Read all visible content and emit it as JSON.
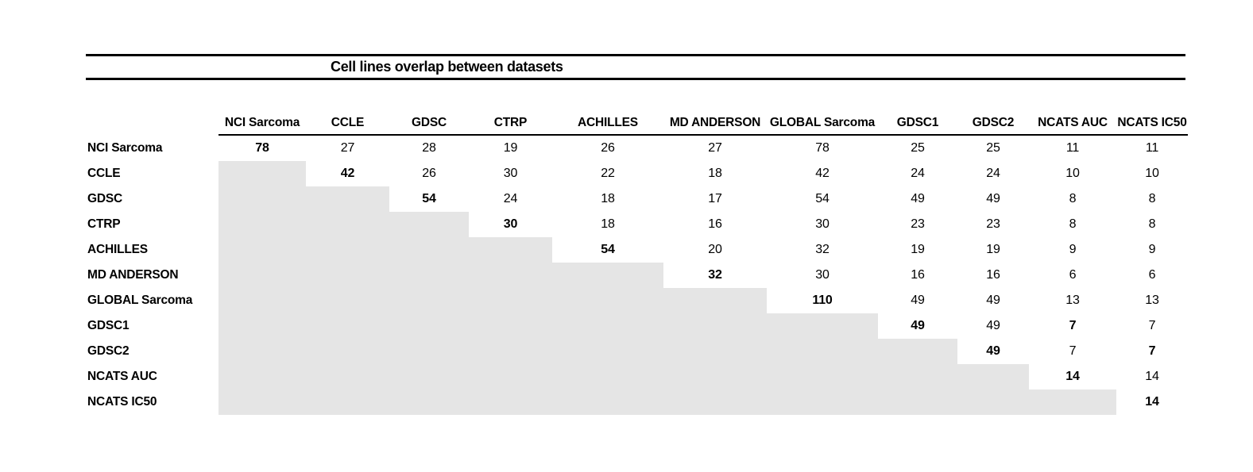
{
  "chart_data": {
    "type": "table",
    "title": "Cell lines overlap between datasets",
    "columns": [
      "NCI Sarcoma",
      "CCLE",
      "GDSC",
      "CTRP",
      "ACHILLES",
      "MD ANDERSON",
      "GLOBAL Sarcoma",
      "GDSC1",
      "GDSC2",
      "NCATS AUC",
      "NCATS IC50"
    ],
    "rows": [
      "NCI Sarcoma",
      "CCLE",
      "GDSC",
      "CTRP",
      "ACHILLES",
      "MD ANDERSON",
      "GLOBAL Sarcoma",
      "GDSC1",
      "GDSC2",
      "NCATS AUC",
      "NCATS IC50"
    ],
    "matrix": [
      [
        78,
        27,
        28,
        19,
        26,
        27,
        78,
        25,
        25,
        11,
        11
      ],
      [
        null,
        42,
        26,
        30,
        22,
        18,
        42,
        24,
        24,
        10,
        10
      ],
      [
        null,
        null,
        54,
        24,
        18,
        17,
        54,
        49,
        49,
        8,
        8
      ],
      [
        null,
        null,
        null,
        30,
        18,
        16,
        30,
        23,
        23,
        8,
        8
      ],
      [
        null,
        null,
        null,
        null,
        54,
        20,
        32,
        19,
        19,
        9,
        9
      ],
      [
        null,
        null,
        null,
        null,
        null,
        32,
        30,
        16,
        16,
        6,
        6
      ],
      [
        null,
        null,
        null,
        null,
        null,
        null,
        110,
        49,
        49,
        13,
        13
      ],
      [
        null,
        null,
        null,
        null,
        null,
        null,
        null,
        49,
        49,
        7,
        7
      ],
      [
        null,
        null,
        null,
        null,
        null,
        null,
        null,
        null,
        49,
        7,
        7
      ],
      [
        null,
        null,
        null,
        null,
        null,
        null,
        null,
        null,
        null,
        14,
        14
      ],
      [
        null,
        null,
        null,
        null,
        null,
        null,
        null,
        null,
        null,
        null,
        14
      ]
    ],
    "bold_cells": [
      [
        0,
        0
      ],
      [
        1,
        1
      ],
      [
        2,
        2
      ],
      [
        3,
        3
      ],
      [
        4,
        4
      ],
      [
        5,
        5
      ],
      [
        6,
        6
      ],
      [
        7,
        7
      ],
      [
        8,
        8
      ],
      [
        9,
        9
      ],
      [
        10,
        10
      ],
      [
        7,
        9
      ],
      [
        8,
        10
      ]
    ],
    "grid": false,
    "legend_position": "none",
    "shaded_lower_triangle": true
  },
  "colors": {
    "shaded_cell": "#e5e5e5",
    "rule_line": "#000000",
    "background": "#ffffff",
    "text": "#000000"
  }
}
